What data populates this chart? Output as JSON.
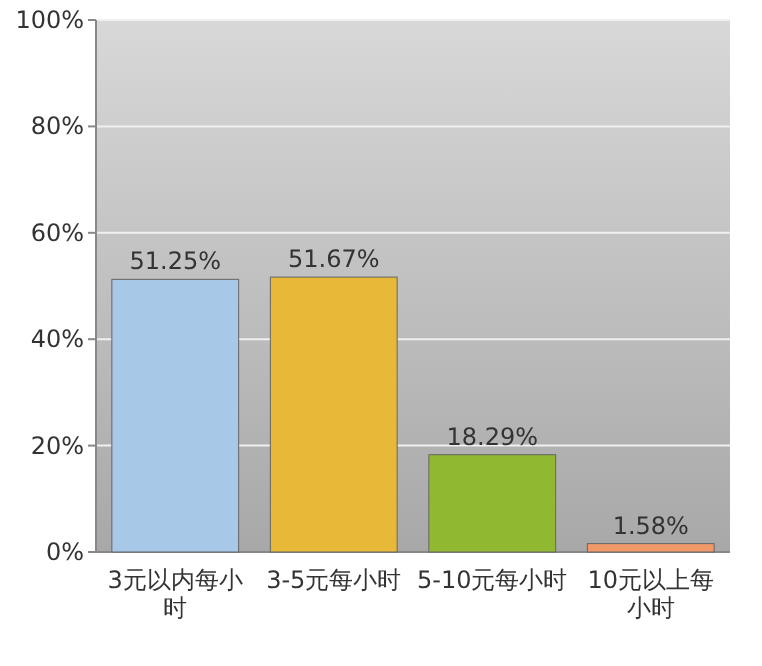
{
  "chart_data": {
    "type": "bar",
    "categories": [
      "3元以内每小时",
      "3-5元每小时",
      "5-10元每小时",
      "10元以上每小时"
    ],
    "values": [
      51.25,
      51.67,
      18.29,
      1.58
    ],
    "colors": [
      "#a8c8e8",
      "#e8b838",
      "#90b830",
      "#f09868"
    ],
    "value_labels": [
      "51.25%",
      "51.67%",
      "18.29%",
      "1.58%"
    ],
    "ylim": [
      0,
      100
    ],
    "yticks": [
      {
        "value": 0,
        "label": "0%"
      },
      {
        "value": 20,
        "label": "20%"
      },
      {
        "value": 40,
        "label": "40%"
      },
      {
        "value": 60,
        "label": "60%"
      },
      {
        "value": 80,
        "label": "80%"
      },
      {
        "value": 100,
        "label": "100%"
      }
    ],
    "grid": "y"
  }
}
